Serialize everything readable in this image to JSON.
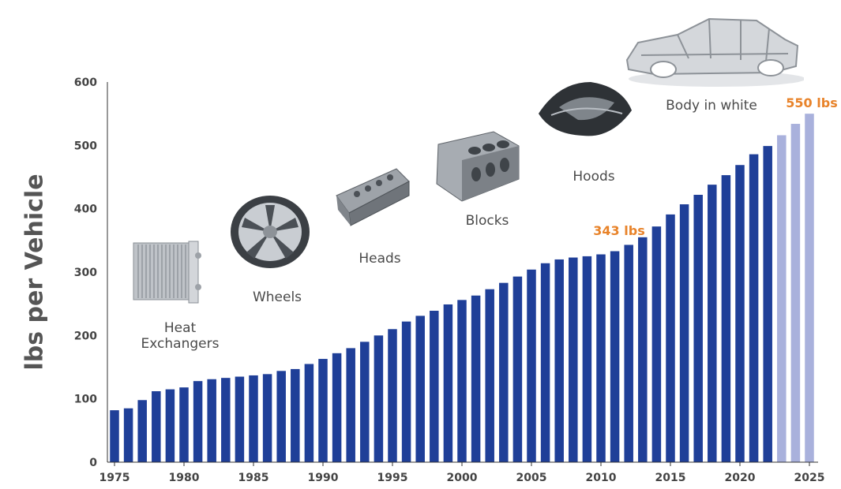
{
  "chart_data": {
    "type": "bar",
    "title": "",
    "xlabel": "",
    "ylabel": "lbs per Vehicle",
    "ylim": [
      0,
      600
    ],
    "yticks": [
      0,
      100,
      200,
      300,
      400,
      500,
      600
    ],
    "xticks": [
      1975,
      1980,
      1985,
      1990,
      1995,
      2000,
      2005,
      2010,
      2015,
      2020,
      2025
    ],
    "colors": {
      "actual": "#1f3f98",
      "forecast": "#a9b1dc",
      "callout": "#e8832a"
    },
    "forecast_from": 2023,
    "series": [
      {
        "x": [
          1975,
          1976,
          1977,
          1978,
          1979,
          1980,
          1981,
          1982,
          1983,
          1984,
          1985,
          1986,
          1987,
          1988,
          1989,
          1990,
          1991,
          1992,
          1993,
          1994,
          1995,
          1996,
          1997,
          1998,
          1999,
          2000,
          2001,
          2002,
          2003,
          2004,
          2005,
          2006,
          2007,
          2008,
          2009,
          2010,
          2011,
          2012,
          2013,
          2014,
          2015,
          2016,
          2017,
          2018,
          2019,
          2020,
          2021,
          2022,
          2023,
          2024,
          2025
        ],
        "values": [
          82,
          85,
          98,
          112,
          115,
          118,
          128,
          131,
          133,
          135,
          137,
          139,
          144,
          147,
          155,
          163,
          172,
          180,
          190,
          200,
          210,
          222,
          231,
          239,
          249,
          256,
          263,
          273,
          283,
          293,
          304,
          314,
          320,
          323,
          325,
          328,
          333,
          343,
          355,
          372,
          391,
          407,
          422,
          438,
          453,
          469,
          486,
          499,
          516,
          534,
          550
        ]
      }
    ],
    "callouts": [
      {
        "year": 2012,
        "text": "343 lbs"
      },
      {
        "year": 2025,
        "text": "550 lbs"
      }
    ],
    "annotations": [
      {
        "id": "heat",
        "line1": "Heat",
        "line2": "Exchangers",
        "icon": "heat-exchanger-icon"
      },
      {
        "id": "wheels",
        "line1": "Wheels",
        "line2": "",
        "icon": "wheel-icon"
      },
      {
        "id": "heads",
        "line1": "Heads",
        "line2": "",
        "icon": "cylinder-head-icon"
      },
      {
        "id": "blocks",
        "line1": "Blocks",
        "line2": "",
        "icon": "engine-block-icon"
      },
      {
        "id": "hoods",
        "line1": "Hoods",
        "line2": "",
        "icon": "car-hood-icon"
      },
      {
        "id": "body",
        "line1": "Body in white",
        "line2": "",
        "icon": "car-body-frame-icon"
      }
    ]
  }
}
